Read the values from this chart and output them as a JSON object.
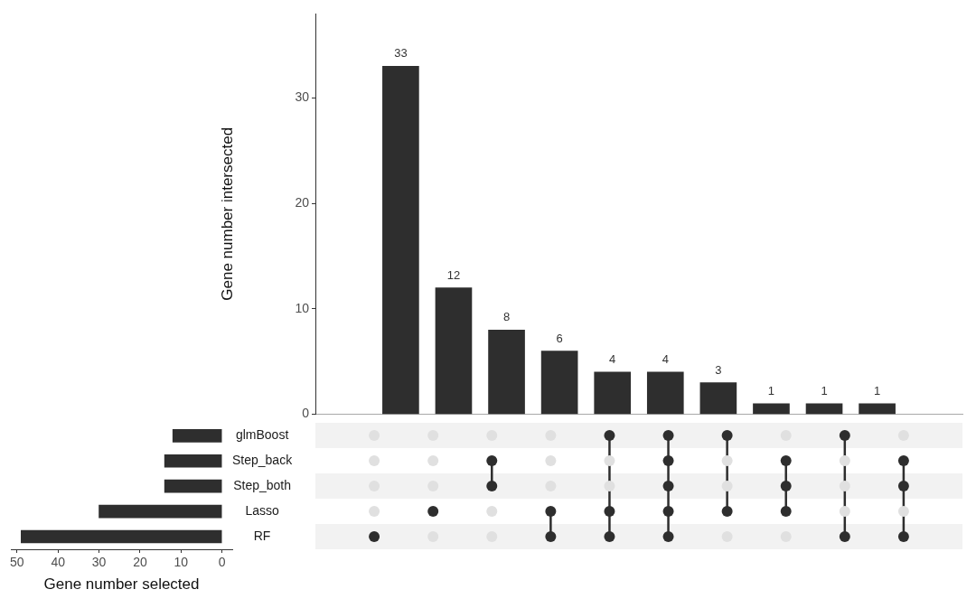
{
  "chart_data": [
    {
      "type": "bar",
      "ylabel": "Gene number intersected",
      "categories": [
        null,
        null,
        null,
        null,
        null,
        null,
        null,
        null,
        null,
        null
      ],
      "values": [
        33,
        12,
        8,
        6,
        4,
        4,
        3,
        1,
        1,
        1
      ],
      "color": "#2e2e2e",
      "ylim": [
        0,
        38
      ],
      "yticks": [
        0,
        10,
        20,
        30
      ],
      "data_labels": true
    },
    {
      "type": "bar",
      "orientation": "horizontal",
      "xlabel": "Gene number selected",
      "categories": [
        "glmBoost",
        "Step_back",
        "Step_both",
        "Lasso",
        "RF"
      ],
      "values": [
        12,
        14,
        14,
        30,
        49
      ],
      "color": "#2e2e2e",
      "xlim": [
        51.5,
        -2.5
      ],
      "xticks": [
        50,
        40,
        30,
        20,
        10,
        0
      ]
    }
  ]
}
